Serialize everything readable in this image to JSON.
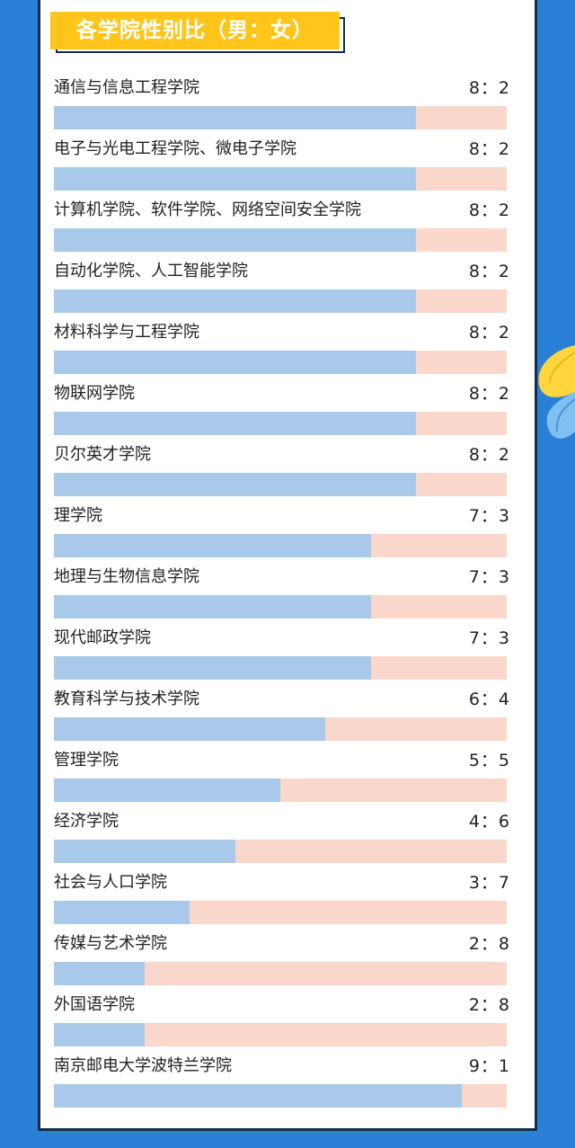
{
  "title": "各学院性别比（男：女）",
  "colors": {
    "male": "#a8c9ea",
    "female": "#f9d7cb",
    "accent": "#ffc51a",
    "background": "#2a7fd6"
  },
  "chart_data": {
    "type": "bar",
    "title": "各学院性别比（男：女）",
    "series_names": [
      "男",
      "女"
    ],
    "categories": [
      "通信与信息工程学院",
      "电子与光电工程学院、微电子学院",
      "计算机学院、软件学院、网络空间安全学院",
      "自动化学院、人工智能学院",
      "材料科学与工程学院",
      "物联网学院",
      "贝尔英才学院",
      "理学院",
      "地理与生物信息学院",
      "现代邮政学院",
      "教育科学与技术学院",
      "管理学院",
      "经济学院",
      "社会与人口学院",
      "传媒与艺术学院",
      "外国语学院",
      "南京邮电大学波特兰学院"
    ],
    "series": [
      {
        "name": "男",
        "values": [
          8,
          8,
          8,
          8,
          8,
          8,
          8,
          7,
          7,
          7,
          6,
          5,
          4,
          3,
          2,
          2,
          9
        ]
      },
      {
        "name": "女",
        "values": [
          2,
          2,
          2,
          2,
          2,
          2,
          2,
          3,
          3,
          3,
          4,
          5,
          6,
          7,
          8,
          8,
          1
        ]
      }
    ],
    "ratio_labels": [
      "8：2",
      "8：2",
      "8：2",
      "8：2",
      "8：2",
      "8：2",
      "8：2",
      "7：3",
      "7：3",
      "7：3",
      "6：4",
      "5：5",
      "4：6",
      "3：7",
      "2：8",
      "2：8",
      "9：1"
    ]
  }
}
